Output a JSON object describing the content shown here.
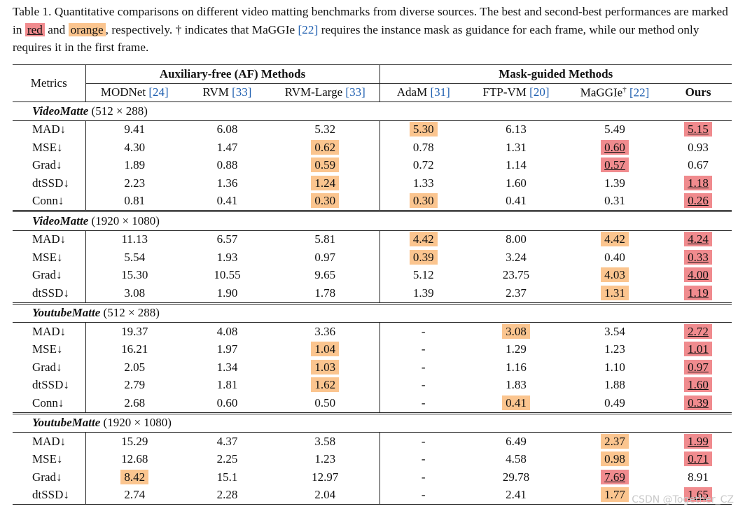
{
  "caption": {
    "part1": "Table 1. Quantitative comparisons on different video matting benchmarks from diverse sources. The best and second-best performances are marked in ",
    "red_word": "red",
    "and_word": " and ",
    "orange_word": "orange",
    "part2": ", respectively. † indicates that MaGGIe ",
    "ref_maggie": "[22]",
    "part3": " requires the instance mask as guidance for each frame, while our method only requires it in the first frame."
  },
  "header": {
    "metrics_label": "Metrics",
    "group_af": "Auxiliary-free (AF) Methods",
    "group_mask": "Mask-guided Methods",
    "columns": [
      {
        "name": "MODNet",
        "ref": "[24]",
        "sup": ""
      },
      {
        "name": "RVM",
        "ref": "[33]",
        "sup": ""
      },
      {
        "name": "RVM-Large",
        "ref": "[33]",
        "sup": ""
      },
      {
        "name": "AdaM",
        "ref": "[31]",
        "sup": ""
      },
      {
        "name": "FTP-VM",
        "ref": "[20]",
        "sup": ""
      },
      {
        "name": "MaGGIe",
        "ref": "[22]",
        "sup": "†"
      },
      {
        "name": "Ours",
        "ref": "",
        "sup": ""
      }
    ]
  },
  "sections": [
    {
      "title": "VideoMatte",
      "res": " (512 × 288)",
      "rows": [
        {
          "metric": "MAD↓",
          "values": [
            "9.41",
            "6.08",
            "5.32",
            "5.30",
            "6.13",
            "5.49",
            "5.15"
          ],
          "marks": [
            "",
            "",
            "",
            "second",
            "",
            "",
            "best"
          ]
        },
        {
          "metric": "MSE↓",
          "values": [
            "4.30",
            "1.47",
            "0.62",
            "0.78",
            "1.31",
            "0.60",
            "0.93"
          ],
          "marks": [
            "",
            "",
            "second",
            "",
            "",
            "best",
            ""
          ]
        },
        {
          "metric": "Grad↓",
          "values": [
            "1.89",
            "0.88",
            "0.59",
            "0.72",
            "1.14",
            "0.57",
            "0.67"
          ],
          "marks": [
            "",
            "",
            "second",
            "",
            "",
            "best",
            ""
          ]
        },
        {
          "metric": "dtSSD↓",
          "values": [
            "2.23",
            "1.36",
            "1.24",
            "1.33",
            "1.60",
            "1.39",
            "1.18"
          ],
          "marks": [
            "",
            "",
            "second",
            "",
            "",
            "",
            "best"
          ]
        },
        {
          "metric": "Conn↓",
          "values": [
            "0.81",
            "0.41",
            "0.30",
            "0.30",
            "0.41",
            "0.31",
            "0.26"
          ],
          "marks": [
            "",
            "",
            "second",
            "second",
            "",
            "",
            "best"
          ]
        }
      ]
    },
    {
      "title": "VideoMatte",
      "res": " (1920 × 1080)",
      "rows": [
        {
          "metric": "MAD↓",
          "values": [
            "11.13",
            "6.57",
            "5.81",
            "4.42",
            "8.00",
            "4.42",
            "4.24"
          ],
          "marks": [
            "",
            "",
            "",
            "second",
            "",
            "second",
            "best"
          ]
        },
        {
          "metric": "MSE↓",
          "values": [
            "5.54",
            "1.93",
            "0.97",
            "0.39",
            "3.24",
            "0.40",
            "0.33"
          ],
          "marks": [
            "",
            "",
            "",
            "second",
            "",
            "",
            "best"
          ]
        },
        {
          "metric": "Grad↓",
          "values": [
            "15.30",
            "10.55",
            "9.65",
            "5.12",
            "23.75",
            "4.03",
            "4.00"
          ],
          "marks": [
            "",
            "",
            "",
            "",
            "",
            "second",
            "best"
          ]
        },
        {
          "metric": "dtSSD↓",
          "values": [
            "3.08",
            "1.90",
            "1.78",
            "1.39",
            "2.37",
            "1.31",
            "1.19"
          ],
          "marks": [
            "",
            "",
            "",
            "",
            "",
            "second",
            "best"
          ]
        }
      ]
    },
    {
      "title": "YoutubeMatte",
      "res": " (512 × 288)",
      "rows": [
        {
          "metric": "MAD↓",
          "values": [
            "19.37",
            "4.08",
            "3.36",
            "-",
            "3.08",
            "3.54",
            "2.72"
          ],
          "marks": [
            "",
            "",
            "",
            "",
            "second",
            "",
            "best"
          ]
        },
        {
          "metric": "MSE↓",
          "values": [
            "16.21",
            "1.97",
            "1.04",
            "-",
            "1.29",
            "1.23",
            "1.01"
          ],
          "marks": [
            "",
            "",
            "second",
            "",
            "",
            "",
            "best"
          ]
        },
        {
          "metric": "Grad↓",
          "values": [
            "2.05",
            "1.34",
            "1.03",
            "-",
            "1.16",
            "1.10",
            "0.97"
          ],
          "marks": [
            "",
            "",
            "second",
            "",
            "",
            "",
            "best"
          ]
        },
        {
          "metric": "dtSSD↓",
          "values": [
            "2.79",
            "1.81",
            "1.62",
            "-",
            "1.83",
            "1.88",
            "1.60"
          ],
          "marks": [
            "",
            "",
            "second",
            "",
            "",
            "",
            "best"
          ]
        },
        {
          "metric": "Conn↓",
          "values": [
            "2.68",
            "0.60",
            "0.50",
            "-",
            "0.41",
            "0.49",
            "0.39"
          ],
          "marks": [
            "",
            "",
            "",
            "",
            "second",
            "",
            "best"
          ]
        }
      ]
    },
    {
      "title": "YoutubeMatte",
      "res": " (1920 × 1080)",
      "rows": [
        {
          "metric": "MAD↓",
          "values": [
            "15.29",
            "4.37",
            "3.58",
            "-",
            "6.49",
            "2.37",
            "1.99"
          ],
          "marks": [
            "",
            "",
            "",
            "",
            "",
            "second",
            "best"
          ]
        },
        {
          "metric": "MSE↓",
          "values": [
            "12.68",
            "2.25",
            "1.23",
            "-",
            "4.58",
            "0.98",
            "0.71"
          ],
          "marks": [
            "",
            "",
            "",
            "",
            "",
            "second",
            "best"
          ]
        },
        {
          "metric": "Grad↓",
          "values": [
            "8.42",
            "15.1",
            "12.97",
            "-",
            "29.78",
            "7.69",
            "8.91"
          ],
          "marks": [
            "second",
            "",
            "",
            "",
            "",
            "best",
            ""
          ]
        },
        {
          "metric": "dtSSD↓",
          "values": [
            "2.74",
            "2.28",
            "2.04",
            "-",
            "2.41",
            "1.77",
            "1.65"
          ],
          "marks": [
            "",
            "",
            "",
            "",
            "",
            "second",
            "best"
          ]
        }
      ]
    }
  ],
  "colors": {
    "best": "#f08b8e",
    "second": "#fbc58f",
    "link": "#1f5fb0"
  },
  "watermark": "CSDN @Together_CZ"
}
